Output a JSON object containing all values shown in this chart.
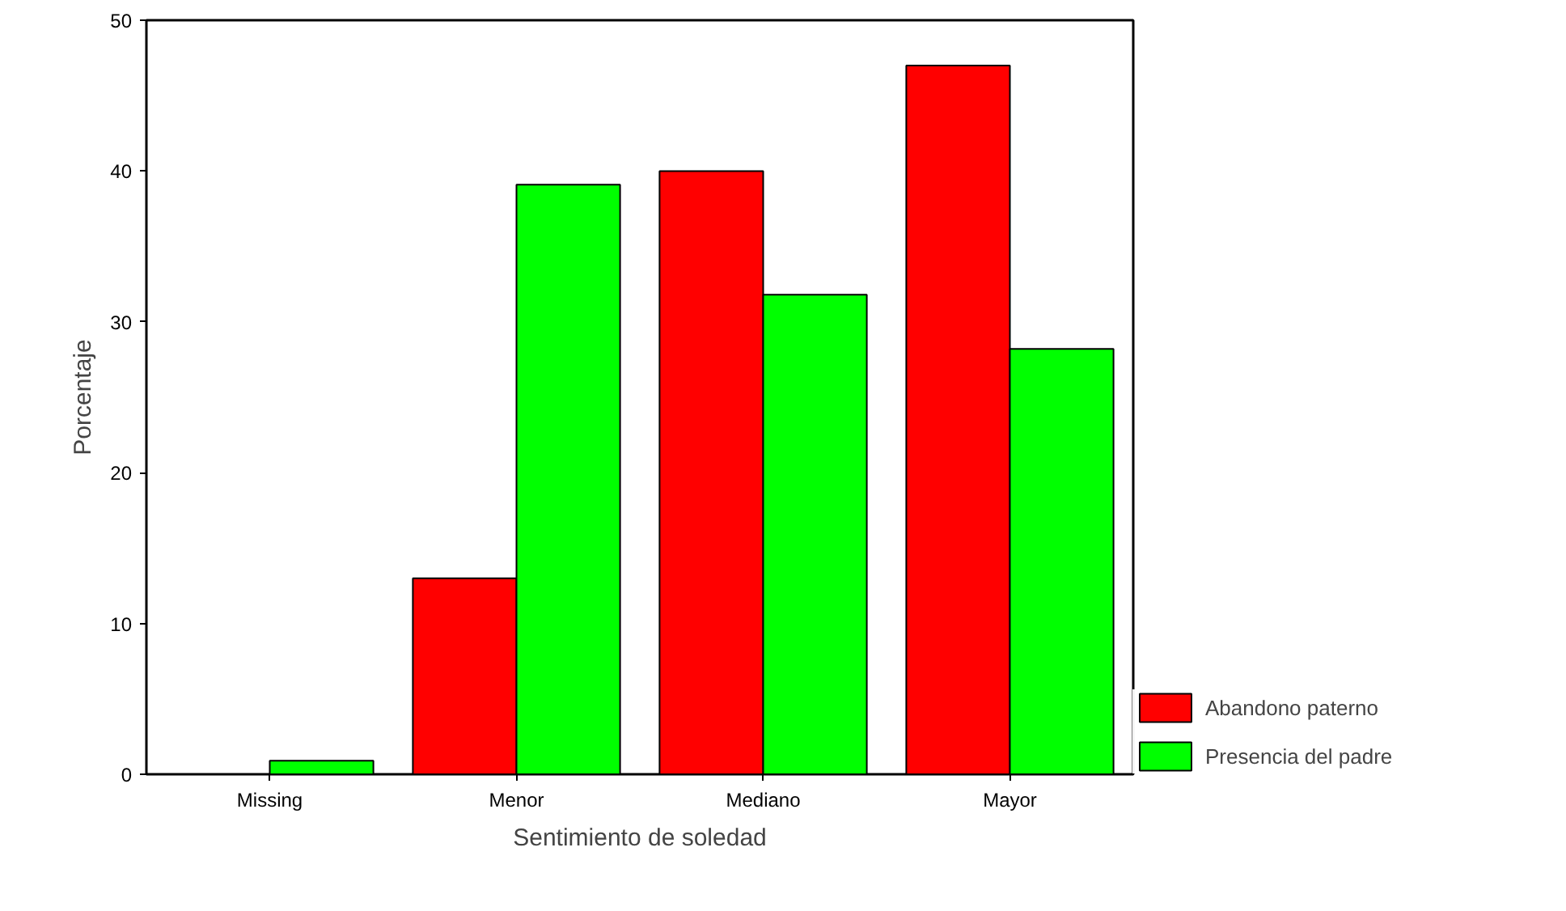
{
  "chart_data": {
    "type": "bar",
    "xlabel": "Sentimiento de soledad",
    "ylabel": "Porcentaje",
    "categories": [
      "Missing",
      "Menor",
      "Mediano",
      "Mayor"
    ],
    "series": [
      {
        "name": "Abandono paterno",
        "color": "#ff0000",
        "values": [
          null,
          13.0,
          40.0,
          47.0
        ]
      },
      {
        "name": "Presencia del padre",
        "color": "#00ff00",
        "values": [
          0.9,
          39.1,
          31.8,
          28.2
        ]
      }
    ],
    "ylim": [
      0,
      50
    ],
    "yticks": [
      0,
      10,
      20,
      30,
      40,
      50
    ],
    "grid": false,
    "legend": "bottom right"
  }
}
